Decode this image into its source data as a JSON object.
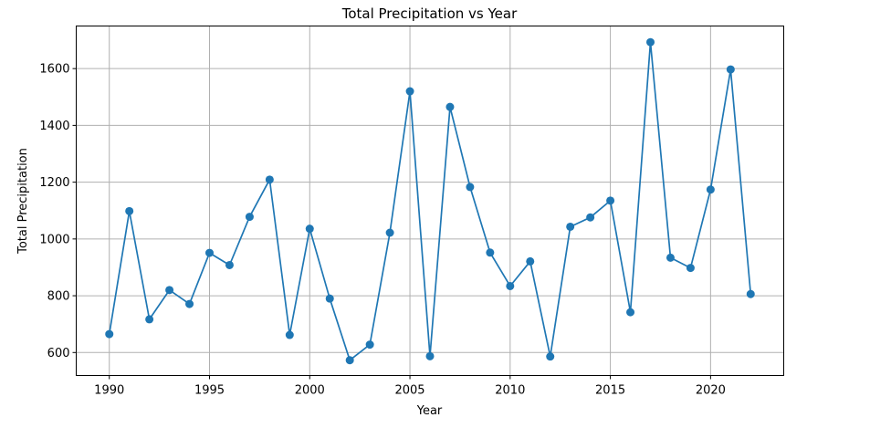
{
  "chart_data": {
    "type": "line",
    "title": "Total Precipitation vs Year",
    "xlabel": "Year",
    "ylabel": "Total Precipitation",
    "xlim": [
      1988.35,
      2023.65
    ],
    "ylim": [
      519,
      1750
    ],
    "xticks": [
      1990,
      1995,
      2000,
      2005,
      2010,
      2015,
      2020
    ],
    "yticks": [
      600,
      800,
      1000,
      1200,
      1400,
      1600
    ],
    "grid": true,
    "color": "#1f77b4",
    "marker": "circle",
    "series": [
      {
        "x": [
          1990,
          1991,
          1992,
          1993,
          1994,
          1995,
          1996,
          1997,
          1998,
          1999,
          2000,
          2001,
          2002,
          2003,
          2004,
          2005,
          2006,
          2007,
          2008,
          2009,
          2010,
          2011,
          2012,
          2013,
          2014,
          2015,
          2016,
          2017,
          2018,
          2019,
          2020,
          2021,
          2022
        ],
        "values": [
          665,
          1098,
          717,
          820,
          771,
          951,
          908,
          1078,
          1209,
          662,
          1036,
          790,
          573,
          628,
          1022,
          1520,
          587,
          1465,
          1183,
          952,
          834,
          921,
          586,
          1043,
          1076,
          1135,
          742,
          1693,
          934,
          898,
          1174,
          1597,
          806
        ]
      }
    ]
  }
}
